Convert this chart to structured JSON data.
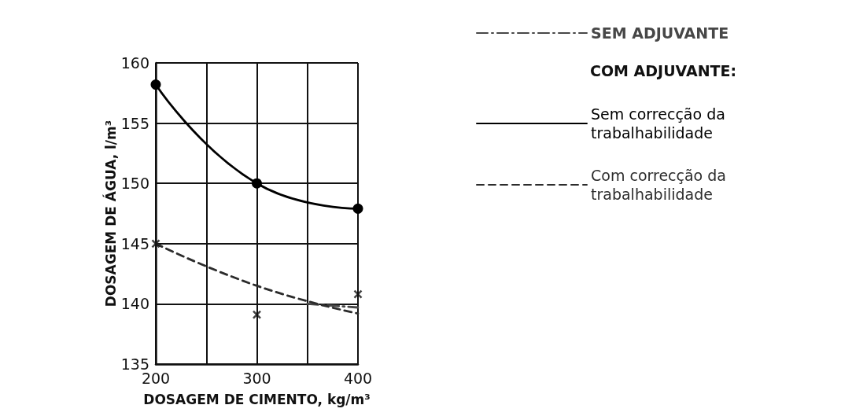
{
  "chart_data": {
    "type": "line",
    "xlabel": "DOSAGEM DE CIMENTO, kg/m³",
    "ylabel": "DOSAGEM DE ÁGUA, l/m³",
    "legend_title": "COM ADJUVANTE:",
    "xlim": [
      200,
      400
    ],
    "xticks": [
      200,
      {
        "value": 250,
        "label": null
      },
      300,
      {
        "value": 350,
        "label": null
      },
      400
    ],
    "ylim": [
      135,
      160
    ],
    "yticks": [
      135,
      140,
      145,
      150,
      155,
      160
    ],
    "grid": true,
    "legend": "right",
    "series": [
      {
        "name": "SEM ADJUVANTE",
        "color": "#474747",
        "line_style": "dashdot",
        "marker": "none",
        "x": [
          350,
          400
        ],
        "values": [
          140,
          139.7
        ]
      },
      {
        "name": "Sem correcção da\ntrabalhabilidade",
        "color": "#000000",
        "line_style": "solid",
        "marker": "circle",
        "x": [
          200,
          300,
          400
        ],
        "values": [
          158.2,
          150,
          147.9
        ]
      },
      {
        "name": "Com correcção da\ntrabalhabilidade",
        "color": "#2c2c2c",
        "line_style": "dashed",
        "marker": "none",
        "x": [
          200,
          300,
          400
        ],
        "values": [
          145,
          141.5,
          139.2
        ]
      },
      {
        "type": "scatter",
        "color": "#111111",
        "marker": "cross",
        "x": [
          200,
          300,
          400
        ],
        "values": [
          145,
          139.1,
          140.8
        ]
      }
    ]
  }
}
